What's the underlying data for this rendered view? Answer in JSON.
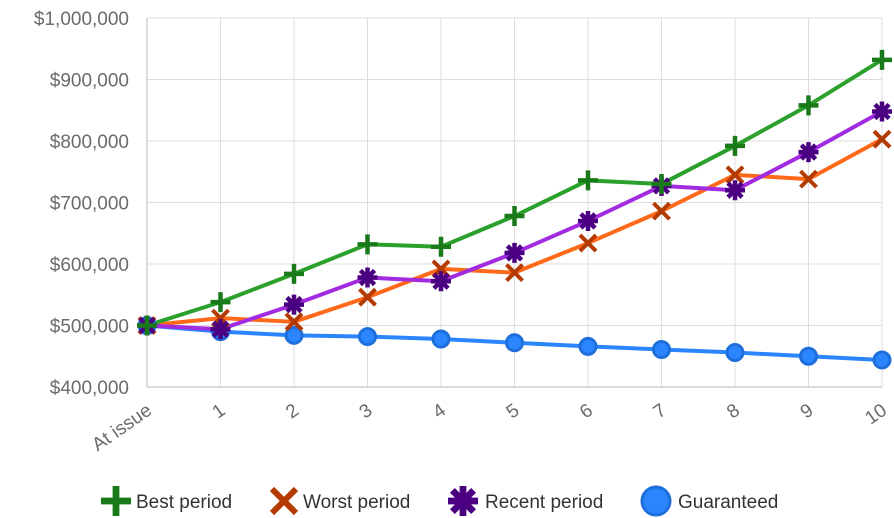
{
  "chart_data": {
    "type": "line",
    "title": "",
    "xlabel": "",
    "ylabel": "",
    "x": [
      "At issue",
      "1",
      "2",
      "3",
      "4",
      "5",
      "6",
      "7",
      "8",
      "9",
      "10"
    ],
    "ylim": [
      400000,
      1000000
    ],
    "y_ticks": [
      400000,
      500000,
      600000,
      700000,
      800000,
      900000,
      1000000
    ],
    "y_tick_labels": [
      "$400,000",
      "$500,000",
      "$600,000",
      "$700,000",
      "$800,000",
      "$900,000",
      "$1,000,000"
    ],
    "grid": true,
    "legend_position": "bottom",
    "series": [
      {
        "name": "Best period",
        "color": "#2ca02c",
        "marker_color": "#1a7a1a",
        "marker": "plus",
        "values": [
          500000,
          538000,
          584000,
          632000,
          628000,
          678000,
          736000,
          730000,
          792000,
          858000,
          932000
        ]
      },
      {
        "name": "Worst period",
        "color": "#ff6a1a",
        "marker_color": "#b33a00",
        "marker": "x",
        "values": [
          500000,
          512000,
          506000,
          546000,
          592000,
          586000,
          634000,
          686000,
          745000,
          738000,
          803000
        ]
      },
      {
        "name": "Recent period",
        "color": "#a22be0",
        "marker_color": "#4b0082",
        "marker": "asterisk",
        "values": [
          500000,
          494000,
          534000,
          578000,
          572000,
          618000,
          670000,
          727000,
          720000,
          782000,
          848000
        ]
      },
      {
        "name": "Guaranteed",
        "color": "#2a85ff",
        "marker_color": "#1e6fdb",
        "marker": "circle",
        "values": [
          500000,
          490000,
          484000,
          482000,
          478000,
          472000,
          466000,
          461000,
          456000,
          450000,
          444000
        ]
      }
    ]
  }
}
